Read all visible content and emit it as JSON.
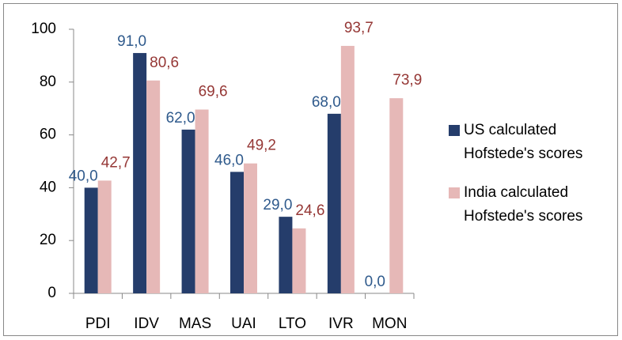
{
  "chart_data": {
    "type": "bar",
    "categories": [
      "PDI",
      "IDV",
      "MAS",
      "UAI",
      "LTO",
      "IVR",
      "MON"
    ],
    "series": [
      {
        "name": "US calculated Hofstede's scores",
        "color": "#253d6b",
        "label_color": "#2f5a8c",
        "values": [
          40,
          91,
          62,
          46,
          29,
          68,
          0
        ],
        "value_labels": [
          "40,0",
          "91,0",
          "62,0",
          "46,0",
          "29,0",
          "68,0",
          "0,0"
        ]
      },
      {
        "name": "India calculated Hofstede's scores",
        "color": "#e6b8b7",
        "label_color": "#953735",
        "values": [
          42.7,
          80.6,
          69.6,
          49.2,
          24.6,
          93.7,
          73.9
        ],
        "value_labels": [
          "42,7",
          "80,6",
          "69,6",
          "49,2",
          "24,6",
          "93,7",
          "73,9"
        ]
      }
    ],
    "ylim": [
      0,
      100
    ],
    "yticks": [
      0,
      20,
      40,
      60,
      80,
      100
    ],
    "grid": false,
    "legend": "right"
  }
}
